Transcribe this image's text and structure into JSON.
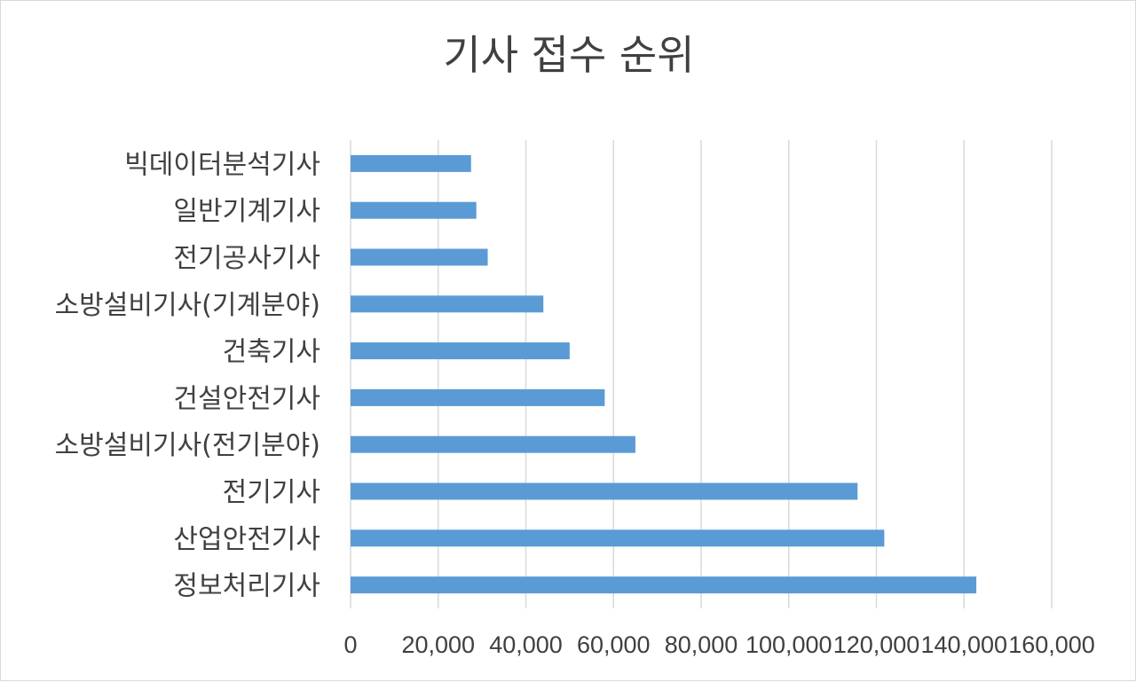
{
  "chart_data": {
    "type": "bar",
    "orientation": "horizontal",
    "title": "기사 접수 순위",
    "categories": [
      "빅데이터분석기사",
      "일반기계기사",
      "전기공사기사",
      "소방설비기사(기계분야)",
      "건축기사",
      "건설안전기사",
      "소방설비기사(전기분야)",
      "전기기사",
      "산업안전기사",
      "정보처리기사"
    ],
    "values": [
      27500,
      28700,
      31300,
      44000,
      50000,
      58000,
      65000,
      115700,
      121800,
      142800
    ],
    "xlim": [
      0,
      160000
    ],
    "xticks": [
      0,
      20000,
      40000,
      60000,
      80000,
      100000,
      120000,
      140000,
      160000
    ],
    "xtick_labels": [
      "0",
      "20,000",
      "40,000",
      "60,000",
      "80,000",
      "100,000",
      "120,000",
      "140,000",
      "160,000"
    ],
    "bar_color": "#5b9bd5",
    "grid": "vertical",
    "legend": "none"
  }
}
